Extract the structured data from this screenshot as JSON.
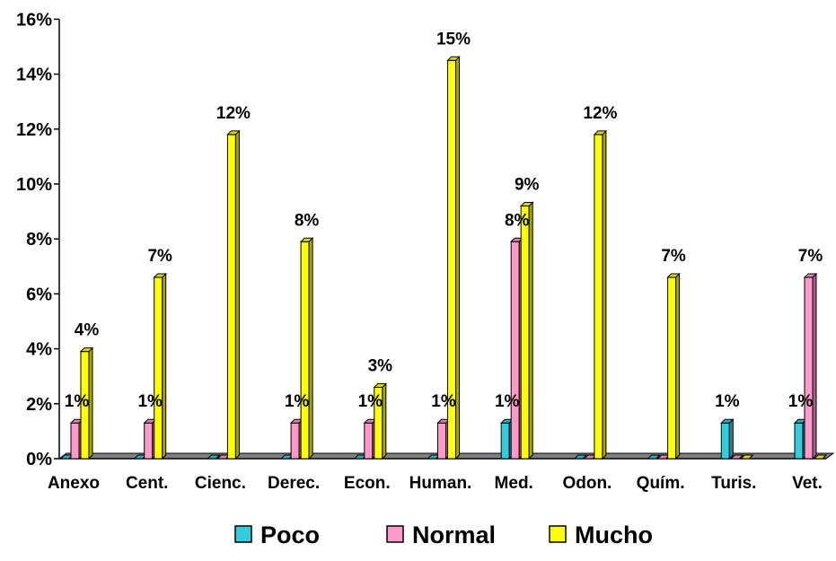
{
  "chart_data": {
    "type": "bar",
    "categories": [
      "Anexo",
      "Cent.",
      "Cienc.",
      "Derec.",
      "Econ.",
      "Human.",
      "Med.",
      "Odon.",
      "Quím.",
      "Turis.",
      "Vet."
    ],
    "series": [
      {
        "name": "Poco",
        "color": "#33ccdd",
        "values": [
          0,
          0,
          0,
          0,
          0,
          0,
          1.3,
          0,
          0,
          1.3,
          1.3
        ]
      },
      {
        "name": "Normal",
        "color": "#ff99cc",
        "values": [
          1.3,
          1.3,
          0,
          1.3,
          1.3,
          1.3,
          7.9,
          0,
          0,
          0,
          6.6
        ]
      },
      {
        "name": "Mucho",
        "color": "#ffff00",
        "values": [
          3.9,
          6.6,
          11.8,
          7.9,
          2.6,
          14.5,
          9.2,
          11.8,
          6.6,
          0,
          0
        ]
      }
    ],
    "data_labels": [
      {
        "category": "Anexo",
        "series": "Normal",
        "text": "1%"
      },
      {
        "category": "Anexo",
        "series": "Mucho",
        "text": "4%"
      },
      {
        "category": "Cent.",
        "series": "Normal",
        "text": "1%"
      },
      {
        "category": "Cent.",
        "series": "Mucho",
        "text": "7%"
      },
      {
        "category": "Cienc.",
        "series": "Mucho",
        "text": "12%"
      },
      {
        "category": "Derec.",
        "series": "Normal",
        "text": "1%"
      },
      {
        "category": "Derec.",
        "series": "Mucho",
        "text": "8%"
      },
      {
        "category": "Econ.",
        "series": "Normal",
        "text": "1%"
      },
      {
        "category": "Econ.",
        "series": "Mucho",
        "text": "3%"
      },
      {
        "category": "Human.",
        "series": "Normal",
        "text": "1%"
      },
      {
        "category": "Human.",
        "series": "Mucho",
        "text": "15%"
      },
      {
        "category": "Med.",
        "series": "Poco",
        "text": "1%"
      },
      {
        "category": "Med.",
        "series": "Normal",
        "text": "8%"
      },
      {
        "category": "Med.",
        "series": "Mucho",
        "text": "9%"
      },
      {
        "category": "Odon.",
        "series": "Mucho",
        "text": "12%"
      },
      {
        "category": "Quím.",
        "series": "Mucho",
        "text": "7%"
      },
      {
        "category": "Turis.",
        "series": "Poco",
        "text": "1%"
      },
      {
        "category": "Vet.",
        "series": "Poco",
        "text": "1%"
      },
      {
        "category": "Vet.",
        "series": "Normal",
        "text": "7%"
      }
    ],
    "y_ticks": [
      "0%",
      "2%",
      "4%",
      "6%",
      "8%",
      "10%",
      "12%",
      "14%",
      "16%"
    ],
    "ylim": [
      0,
      16
    ],
    "grid": false,
    "legend_position": "bottom",
    "floor_color": "#808080",
    "title": "",
    "xlabel": "",
    "ylabel": ""
  }
}
